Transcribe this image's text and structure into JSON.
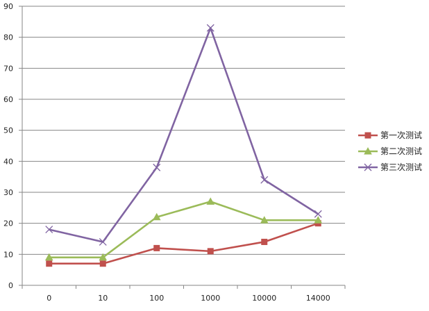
{
  "chart_data": {
    "type": "line",
    "title": "",
    "xlabel": "",
    "ylabel": "",
    "categories": [
      "0",
      "10",
      "100",
      "1000",
      "10000",
      "14000"
    ],
    "ylim": [
      0,
      90
    ],
    "yticks": [
      "0",
      "10",
      "20",
      "30",
      "40",
      "50",
      "60",
      "70",
      "80",
      "90"
    ],
    "grid": "horizontal",
    "legend_position": "right",
    "series": [
      {
        "name": "第一次测试",
        "values": [
          7,
          7,
          12,
          11,
          14,
          20
        ],
        "color": "#c0504d",
        "marker": "square"
      },
      {
        "name": "第二次测试",
        "values": [
          9,
          9,
          22,
          27,
          21,
          21
        ],
        "color": "#9bbb59",
        "marker": "triangle"
      },
      {
        "name": "第三次测试",
        "values": [
          18,
          14,
          38,
          83,
          34,
          23
        ],
        "color": "#8064a2",
        "marker": "x"
      }
    ]
  }
}
